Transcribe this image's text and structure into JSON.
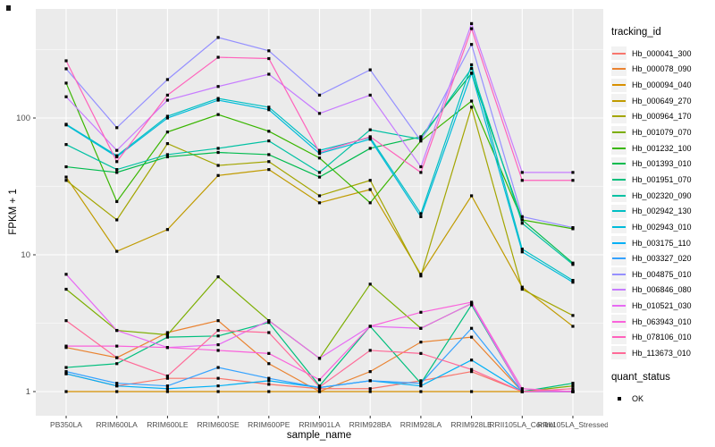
{
  "chart_data": {
    "type": "line",
    "title": "",
    "xlabel": "sample_name",
    "ylabel": "FPKM + 1",
    "y_scale": "log10",
    "ylim": [
      1,
      550
    ],
    "y_ticks": [
      1,
      10,
      100
    ],
    "y_minor_ticks": [
      3.162,
      31.62,
      316.2
    ],
    "grid": "on",
    "legend_position": "right",
    "x_categories": [
      "PB350LA",
      "RRIM600LA",
      "RRIM600LE",
      "RRIM600SE",
      "RRIM600PE",
      "RRIM901LA",
      "RRIM928BA",
      "RRIM928LA",
      "RRIM928LE",
      "RRII105LA_Control",
      "RRII105LA_Stressed"
    ],
    "legend_title": "tracking_id",
    "series": [
      {
        "name": "Hb_000041_300",
        "color": "#F8766D",
        "values": [
          1.35,
          1.1,
          1.25,
          1.25,
          1.13,
          1.05,
          1.05,
          1.2,
          1.4,
          1.0,
          1.0
        ]
      },
      {
        "name": "Hb_000078_090",
        "color": "#EA8331",
        "values": [
          2.1,
          1.77,
          2.7,
          3.3,
          1.6,
          1.0,
          1.4,
          2.3,
          2.5,
          1.0,
          1.0
        ]
      },
      {
        "name": "Hb_000094_040",
        "color": "#D89000",
        "values": [
          1.0,
          1.0,
          1.0,
          1.0,
          1.0,
          1.0,
          1.0,
          1.0,
          1.0,
          1.0,
          1.0
        ]
      },
      {
        "name": "Hb_000649_270",
        "color": "#C09B00",
        "values": [
          37,
          10.6,
          15.3,
          38,
          42,
          24,
          30,
          7.2,
          27,
          5.8,
          3.0
        ]
      },
      {
        "name": "Hb_000964_170",
        "color": "#A3A500",
        "values": [
          35,
          18,
          65,
          45,
          48,
          27,
          35,
          7.0,
          120,
          5.6,
          3.6
        ]
      },
      {
        "name": "Hb_001079_070",
        "color": "#7CAE00",
        "values": [
          5.6,
          2.8,
          2.6,
          6.9,
          3.3,
          1.75,
          6.1,
          2.9,
          4.4,
          1.0,
          1.1
        ]
      },
      {
        "name": "Hb_001232_100",
        "color": "#39B600",
        "values": [
          180,
          24.5,
          79,
          106,
          80,
          51,
          24,
          68,
          133,
          18,
          15.5
        ]
      },
      {
        "name": "Hb_001393_010",
        "color": "#00BB4E",
        "values": [
          44,
          40,
          52,
          56,
          54,
          37,
          60,
          73,
          212,
          18,
          8.7
        ]
      },
      {
        "name": "Hb_001951_070",
        "color": "#00BF7D",
        "values": [
          1.5,
          1.6,
          2.5,
          2.55,
          3.2,
          1.1,
          3.0,
          1.15,
          4.3,
          1.0,
          1.15
        ]
      },
      {
        "name": "Hb_002320_090",
        "color": "#00C1A3",
        "values": [
          64,
          42,
          54,
          60,
          68,
          40,
          82,
          70,
          230,
          17,
          8.5
        ]
      },
      {
        "name": "Hb_002942_130",
        "color": "#00BFC4",
        "values": [
          90,
          53,
          103,
          139,
          120,
          58,
          72,
          20,
          245,
          11,
          6.5
        ]
      },
      {
        "name": "Hb_002943_010",
        "color": "#00BBDA",
        "values": [
          89,
          52,
          100,
          135,
          115,
          55,
          70,
          19,
          213,
          10.5,
          6.3
        ]
      },
      {
        "name": "Hb_003175_110",
        "color": "#00B0F6",
        "values": [
          1.35,
          1.1,
          1.05,
          1.1,
          1.2,
          1.07,
          1.2,
          1.1,
          1.7,
          1.0,
          1.0
        ]
      },
      {
        "name": "Hb_003327_020",
        "color": "#35A2FF",
        "values": [
          1.4,
          1.15,
          1.1,
          1.5,
          1.25,
          1.07,
          1.2,
          1.15,
          2.9,
          1.0,
          1.0
        ]
      },
      {
        "name": "Hb_004875_010",
        "color": "#9590FF",
        "values": [
          229,
          85,
          191,
          388,
          310,
          147,
          225,
          68,
          345,
          19,
          15.8
        ]
      },
      {
        "name": "Hb_006846_080",
        "color": "#C77CFF",
        "values": [
          143,
          58,
          135,
          170,
          209,
          108,
          147,
          44,
          490,
          40,
          40
        ]
      },
      {
        "name": "Hb_010521_030",
        "color": "#E76BF3",
        "values": [
          7.2,
          2.8,
          2.1,
          2.2,
          3.3,
          1.75,
          3.0,
          2.9,
          4.4,
          1.0,
          1.0
        ]
      },
      {
        "name": "Hb_063943_010",
        "color": "#FA62DB",
        "values": [
          2.15,
          2.15,
          2.1,
          2.0,
          1.9,
          1.22,
          3.0,
          3.8,
          4.5,
          1.05,
          1.0
        ]
      },
      {
        "name": "Hb_078106_010",
        "color": "#FF62BC",
        "values": [
          262,
          48,
          147,
          278,
          272,
          56,
          73,
          40,
          450,
          35,
          35
        ]
      },
      {
        "name": "Hb_113673_010",
        "color": "#FF6A98",
        "values": [
          3.3,
          1.77,
          1.3,
          2.8,
          2.7,
          1.08,
          2.0,
          1.9,
          1.45,
          1.0,
          1.05
        ]
      }
    ],
    "quant_status": {
      "title": "quant_status",
      "items": [
        {
          "label": "OK",
          "marker": "black-square"
        }
      ]
    },
    "colors": {
      "panel_bg": "#EBEBEB",
      "grid": "#FFFFFF",
      "point": "#000000",
      "legend_key_bg": "#F2F2F2",
      "tick_text": "#4D4D4D"
    }
  }
}
